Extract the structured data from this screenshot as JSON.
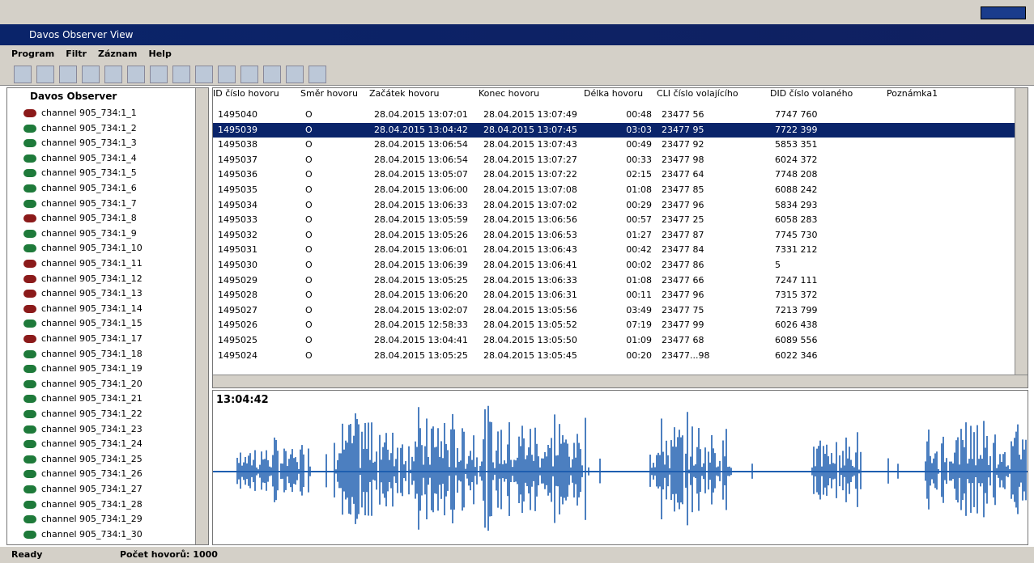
{
  "window": {
    "title": "Davos Observer View"
  },
  "menu": [
    "Program",
    "Filtr",
    "Záznam",
    "Help"
  ],
  "tree": {
    "root": "Davos Observer",
    "channels": [
      {
        "label": "channel 905_734:1_1",
        "color": "#8b1a1a"
      },
      {
        "label": "channel 905_734:1_2",
        "color": "#1e7a3a"
      },
      {
        "label": "channel 905_734:1_3",
        "color": "#1e7a3a"
      },
      {
        "label": "channel 905_734:1_4",
        "color": "#1e7a3a"
      },
      {
        "label": "channel 905_734:1_5",
        "color": "#1e7a3a"
      },
      {
        "label": "channel 905_734:1_6",
        "color": "#1e7a3a"
      },
      {
        "label": "channel 905_734:1_7",
        "color": "#1e7a3a"
      },
      {
        "label": "channel 905_734:1_8",
        "color": "#8b1a1a"
      },
      {
        "label": "channel 905_734:1_9",
        "color": "#1e7a3a"
      },
      {
        "label": "channel 905_734:1_10",
        "color": "#1e7a3a"
      },
      {
        "label": "channel 905_734:1_11",
        "color": "#8b1a1a"
      },
      {
        "label": "channel 905_734:1_12",
        "color": "#8b1a1a"
      },
      {
        "label": "channel 905_734:1_13",
        "color": "#8b1a1a"
      },
      {
        "label": "channel 905_734:1_14",
        "color": "#8b1a1a"
      },
      {
        "label": "channel 905_734:1_15",
        "color": "#1e7a3a"
      },
      {
        "label": "channel 905_734:1_17",
        "color": "#8b1a1a"
      },
      {
        "label": "channel 905_734:1_18",
        "color": "#1e7a3a"
      },
      {
        "label": "channel 905_734:1_19",
        "color": "#1e7a3a"
      },
      {
        "label": "channel 905_734:1_20",
        "color": "#1e7a3a"
      },
      {
        "label": "channel 905_734:1_21",
        "color": "#1e7a3a"
      },
      {
        "label": "channel 905_734:1_22",
        "color": "#1e7a3a"
      },
      {
        "label": "channel 905_734:1_23",
        "color": "#1e7a3a"
      },
      {
        "label": "channel 905_734:1_24",
        "color": "#1e7a3a"
      },
      {
        "label": "channel 905_734:1_25",
        "color": "#1e7a3a"
      },
      {
        "label": "channel 905_734:1_26",
        "color": "#1e7a3a"
      },
      {
        "label": "channel 905_734:1_27",
        "color": "#1e7a3a"
      },
      {
        "label": "channel 905_734:1_28",
        "color": "#1e7a3a"
      },
      {
        "label": "channel 905_734:1_29",
        "color": "#1e7a3a"
      },
      {
        "label": "channel 905_734:1_30",
        "color": "#1e7a3a"
      }
    ]
  },
  "table": {
    "columns": [
      "ID číslo hovoru",
      "Směr hovoru",
      "Začátek hovoru",
      "Konec hovoru",
      "Délka hovoru",
      "CLI číslo volajícího",
      "DID číslo volaného",
      "Poznámka1"
    ],
    "selected_row": 1,
    "rows": [
      [
        "1495040",
        "O",
        "28.04.2015 13:07:01",
        "28.04.2015 13:07:49",
        "00:48",
        "23477  56",
        "7747 760"
      ],
      [
        "1495039",
        "O",
        "28.04.2015 13:04:42",
        "28.04.2015 13:07:45",
        "03:03",
        "23477  95",
        "7722 399"
      ],
      [
        "1495038",
        "O",
        "28.04.2015 13:06:54",
        "28.04.2015 13:07:43",
        "00:49",
        "23477  92",
        "5853 351"
      ],
      [
        "1495037",
        "O",
        "28.04.2015 13:06:54",
        "28.04.2015 13:07:27",
        "00:33",
        "23477  98",
        "6024 372"
      ],
      [
        "1495036",
        "O",
        "28.04.2015 13:05:07",
        "28.04.2015 13:07:22",
        "02:15",
        "23477  64",
        "7748 208"
      ],
      [
        "1495035",
        "O",
        "28.04.2015 13:06:00",
        "28.04.2015 13:07:08",
        "01:08",
        "23477  85",
        "6088 242"
      ],
      [
        "1495034",
        "O",
        "28.04.2015 13:06:33",
        "28.04.2015 13:07:02",
        "00:29",
        "23477  96",
        "5834 293"
      ],
      [
        "1495033",
        "O",
        "28.04.2015 13:05:59",
        "28.04.2015 13:06:56",
        "00:57",
        "23477  25",
        "6058 283"
      ],
      [
        "1495032",
        "O",
        "28.04.2015 13:05:26",
        "28.04.2015 13:06:53",
        "01:27",
        "23477  87",
        "7745 730"
      ],
      [
        "1495031",
        "O",
        "28.04.2015 13:06:01",
        "28.04.2015 13:06:43",
        "00:42",
        "23477  84",
        "7331 212"
      ],
      [
        "1495030",
        "O",
        "28.04.2015 13:06:39",
        "28.04.2015 13:06:41",
        "00:02",
        "23477  86",
        "5"
      ],
      [
        "1495029",
        "O",
        "28.04.2015 13:05:25",
        "28.04.2015 13:06:33",
        "01:08",
        "23477  66",
        "7247 111"
      ],
      [
        "1495028",
        "O",
        "28.04.2015 13:06:20",
        "28.04.2015 13:06:31",
        "00:11",
        "23477  96",
        "7315 372"
      ],
      [
        "1495027",
        "O",
        "28.04.2015 13:02:07",
        "28.04.2015 13:05:56",
        "03:49",
        "23477  75",
        "7213 799"
      ],
      [
        "1495026",
        "O",
        "28.04.2015 12:58:33",
        "28.04.2015 13:05:52",
        "07:19",
        "23477  99",
        "6026 438"
      ],
      [
        "1495025",
        "O",
        "28.04.2015 13:04:41",
        "28.04.2015 13:05:50",
        "01:09",
        "23477  68",
        "6089 556"
      ],
      [
        "1495024",
        "O",
        "28.04.2015 13:05:25",
        "28.04.2015 13:05:45",
        "00:20",
        "23477...98",
        "6022 346"
      ]
    ]
  },
  "waveform": {
    "time": "13:04:42"
  },
  "status": {
    "left": "Ready",
    "right": "Počet hovorů: 1000"
  }
}
